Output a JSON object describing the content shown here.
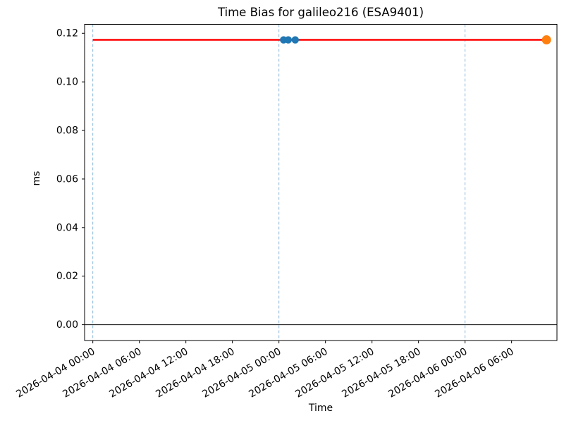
{
  "chart_data": {
    "type": "scatter",
    "title": "Time Bias for galileo216 (ESA9401)",
    "xlabel": "Time",
    "ylabel": "ms",
    "grid": false,
    "legend": null,
    "x_axis": {
      "origin": "2026-04-04 00:00",
      "unit": "hours since origin",
      "lim_hours": [
        -1.06,
        59.85
      ],
      "tick_rotation_deg": 30,
      "ticks": [
        {
          "hours": 0,
          "label": "2026-04-04 00:00"
        },
        {
          "hours": 6,
          "label": "2026-04-04 06:00"
        },
        {
          "hours": 12,
          "label": "2026-04-04 12:00"
        },
        {
          "hours": 18,
          "label": "2026-04-04 18:00"
        },
        {
          "hours": 24,
          "label": "2026-04-05 00:00"
        },
        {
          "hours": 30,
          "label": "2026-04-05 06:00"
        },
        {
          "hours": 36,
          "label": "2026-04-05 12:00"
        },
        {
          "hours": 42,
          "label": "2026-04-05 18:00"
        },
        {
          "hours": 48,
          "label": "2026-04-06 00:00"
        },
        {
          "hours": 54,
          "label": "2026-04-06 06:00"
        }
      ]
    },
    "y_axis": {
      "lim": [
        -0.0065,
        0.1237
      ],
      "ticks": [
        {
          "value": 0.0,
          "label": "0.00"
        },
        {
          "value": 0.02,
          "label": "0.02"
        },
        {
          "value": 0.04,
          "label": "0.04"
        },
        {
          "value": 0.06,
          "label": "0.06"
        },
        {
          "value": 0.08,
          "label": "0.08"
        },
        {
          "value": 0.1,
          "label": "0.10"
        },
        {
          "value": 0.12,
          "label": "0.12"
        }
      ]
    },
    "series": [
      {
        "name": "blue-markers",
        "type": "scatter",
        "color": "#1f77b4",
        "marker_radius": 5.2,
        "points": [
          {
            "t_hours": 24.6,
            "y": 0.1173
          },
          {
            "t_hours": 25.2,
            "y": 0.1173
          },
          {
            "t_hours": 26.1,
            "y": 0.1173
          }
        ]
      },
      {
        "name": "orange-marker",
        "type": "scatter",
        "color": "#ff7f0e",
        "marker_radius": 6.5,
        "points": [
          {
            "t_hours": 58.5,
            "y": 0.1173
          }
        ]
      }
    ],
    "fit_line": {
      "color": "#ff0000",
      "width": 2.5,
      "from_hours": 0,
      "to_hours": 58.5,
      "y": 0.1173
    },
    "vlines": {
      "color": "#8ab6d9",
      "style": "dashed",
      "hours": [
        0,
        24,
        48
      ]
    },
    "hlines": [
      {
        "y": 0.0,
        "color": "#000000",
        "width": 1
      }
    ],
    "spine_color": "#000000"
  }
}
